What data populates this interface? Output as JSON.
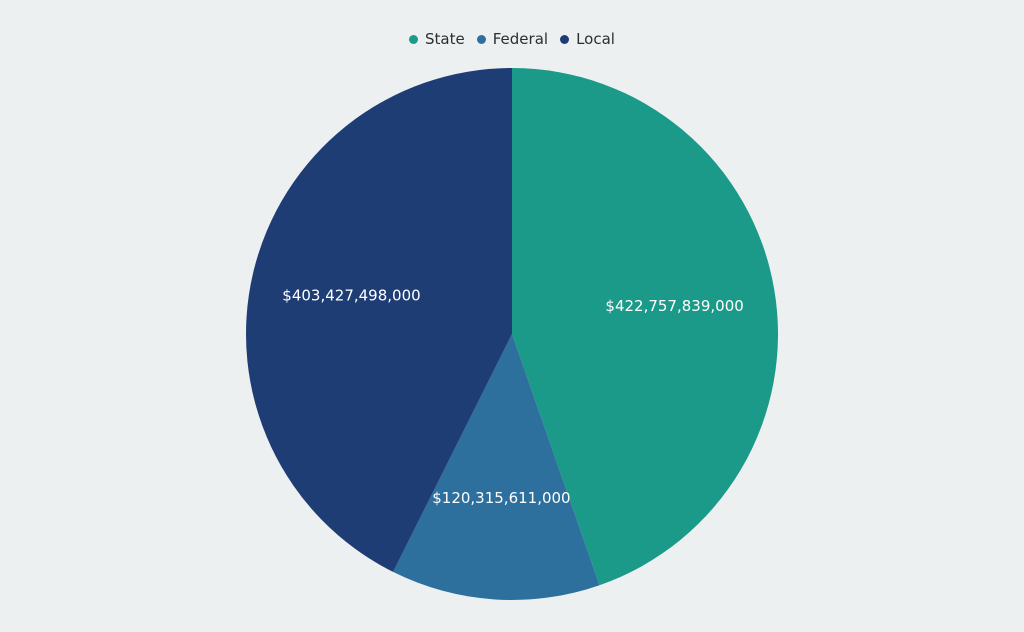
{
  "chart_data": {
    "type": "pie",
    "categories": [
      "State",
      "Federal",
      "Local"
    ],
    "values": [
      422757839000,
      120315611000,
      403427498000
    ],
    "labels": [
      "$422,757,839,000",
      "$120,315,611,000",
      "$403,427,498,000"
    ],
    "colors": [
      "#1b9989",
      "#2e709d",
      "#1f3d75"
    ],
    "legend": {
      "placement": "top-center",
      "items": [
        {
          "label": "State",
          "color": "#1b9989"
        },
        {
          "label": "Federal",
          "color": "#2e709d"
        },
        {
          "label": "Local",
          "color": "#1f3d75"
        }
      ]
    },
    "title": ""
  }
}
